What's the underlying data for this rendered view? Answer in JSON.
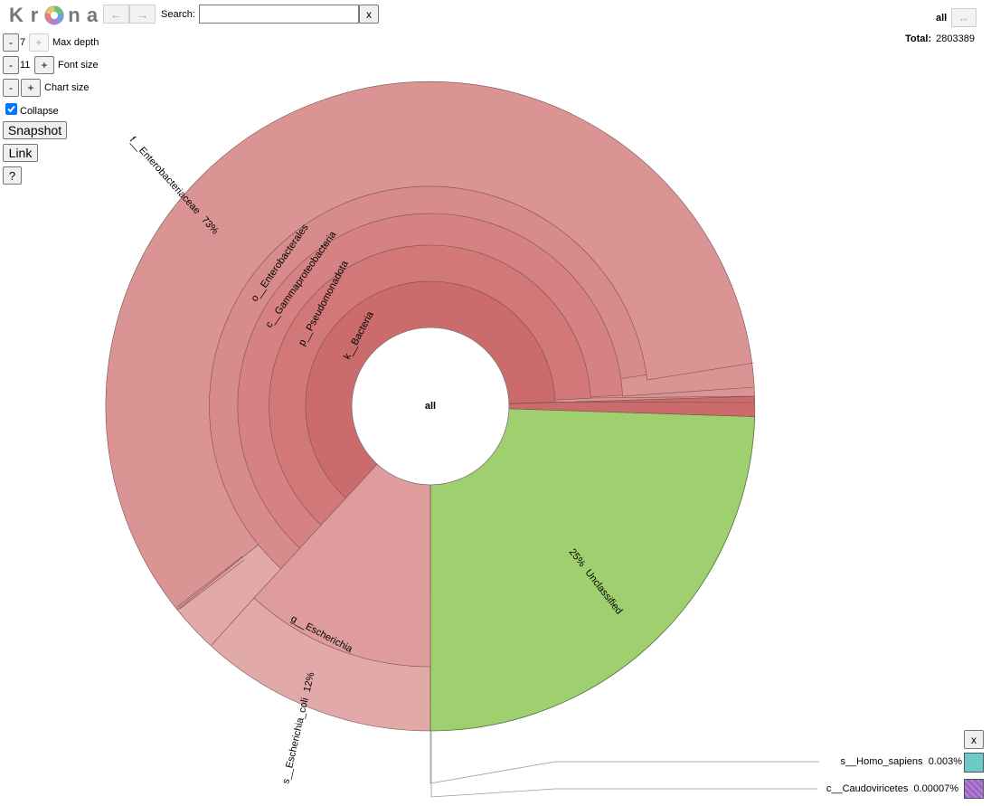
{
  "logo": {
    "letters": [
      "K",
      "r",
      "n",
      "a"
    ]
  },
  "nav": {
    "back_label": "←",
    "forward_label": "→"
  },
  "search": {
    "label": "Search:",
    "value": "",
    "placeholder": "",
    "clear_label": "x"
  },
  "controls": {
    "max_depth": {
      "minus": "-",
      "value": "7",
      "plus": "+",
      "label": "Max depth"
    },
    "font_size": {
      "minus": "-",
      "value": "11",
      "plus": "+",
      "label": "Font size"
    },
    "chart_size": {
      "minus": "-",
      "plus": "+",
      "label": "Chart size"
    },
    "collapse": {
      "label": "Collapse",
      "checked": true
    },
    "snapshot_label": "Snapshot",
    "link_label": "Link",
    "help_label": "?"
  },
  "selection": {
    "name": "all",
    "expand_label": "↔",
    "total_label": "Total:",
    "total_value": "2803389"
  },
  "chart_center_label": "all",
  "segments": [
    {
      "label": "k__Bacteria",
      "percent": null,
      "color": "#cc6b6b"
    },
    {
      "label": "p__Pseudomonadota",
      "percent": null,
      "color": "#d27878"
    },
    {
      "label": "c__Gammaproteobacteria",
      "percent": null,
      "color": "#d68282"
    },
    {
      "label": "o__Enterobacterales",
      "percent": null,
      "color": "#d88b8b"
    },
    {
      "label": "f__Enterobacteriaceae",
      "percent": "73%",
      "color": "#db9494"
    },
    {
      "label": "g__Escherichia",
      "percent": null,
      "color": "#df9c9c"
    },
    {
      "label": "s__Escherichia_coli",
      "percent": "12%",
      "color": "#e2a9a9"
    },
    {
      "label": "Unclassified",
      "percent": "25%",
      "color": "#a0cf6f"
    }
  ],
  "key": {
    "close_label": "x",
    "items": [
      {
        "name": "s__Homo_sapiens",
        "percent": "0.003%",
        "color": "#6bcbc7"
      },
      {
        "name": "c__Caudoviricetes",
        "percent": "0.00007%",
        "color": "#9b63c4"
      }
    ]
  }
}
